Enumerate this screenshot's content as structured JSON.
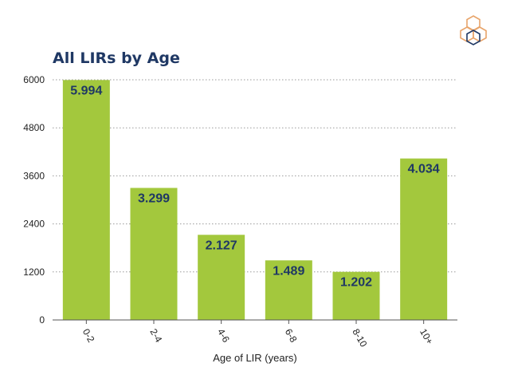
{
  "chart_data": {
    "type": "bar",
    "title": "All LIRs by Age",
    "xlabel": "Age of LIR (years)",
    "ylabel": "",
    "categories": [
      "0-2",
      "2-4",
      "4-6",
      "6-8",
      "8-10",
      "10+"
    ],
    "values": [
      5994,
      3299,
      2127,
      1489,
      1202,
      4034
    ],
    "data_labels": [
      "5.994",
      "3.299",
      "2.127",
      "1.489",
      "1.202",
      "4.034"
    ],
    "ylim": [
      0,
      6000
    ],
    "yticks": [
      0,
      1200,
      2400,
      3600,
      4800,
      6000
    ],
    "ytick_labels": [
      "0",
      "1200",
      "2400",
      "3600",
      "4800",
      "6000"
    ],
    "grid": true,
    "bar_color": "#a3c83d",
    "label_color": "#1f3864"
  },
  "logo": {
    "name": "hexagon-logo-icon",
    "colors": [
      "#e8a46a",
      "#1f3864"
    ]
  }
}
